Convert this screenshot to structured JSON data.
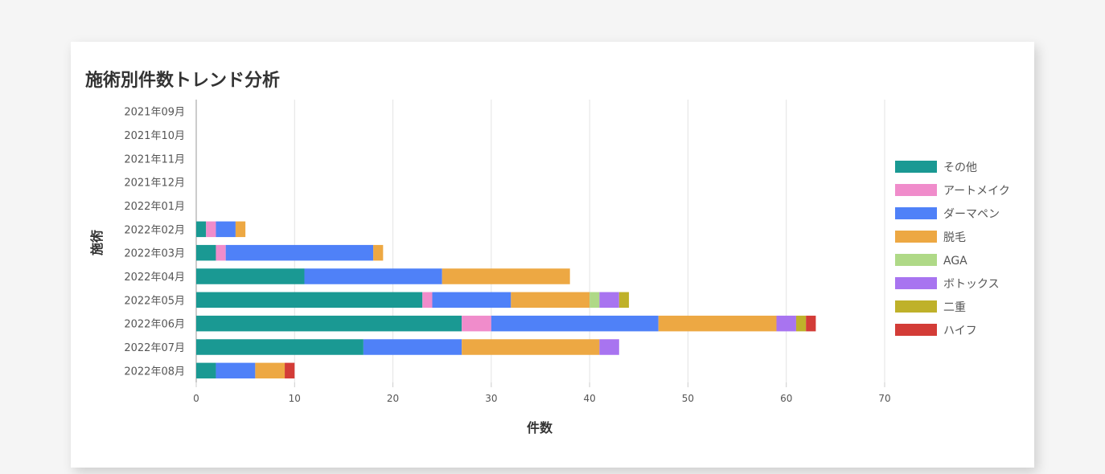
{
  "chart_data": {
    "type": "bar",
    "orientation": "horizontal",
    "stacked": true,
    "title": "施術別件数トレンド分析",
    "xlabel": "件数",
    "ylabel": "施術",
    "xlim": [
      0,
      70
    ],
    "xticks": [
      0,
      10,
      20,
      30,
      40,
      50,
      60,
      70
    ],
    "grid": true,
    "legend_position": "right",
    "categories": [
      "2021年09月",
      "2021年10月",
      "2021年11月",
      "2021年12月",
      "2022年01月",
      "2022年02月",
      "2022年03月",
      "2022年04月",
      "2022年05月",
      "2022年06月",
      "2022年07月",
      "2022年08月"
    ],
    "series": [
      {
        "name": "その他",
        "color": "#1a9993",
        "values": [
          0,
          0,
          0,
          0,
          0,
          1,
          2,
          11,
          23,
          27,
          17,
          2
        ]
      },
      {
        "name": "アートメイク",
        "color": "#f08ccb",
        "values": [
          0,
          0,
          0,
          0,
          0,
          1,
          1,
          0,
          1,
          3,
          0,
          0
        ]
      },
      {
        "name": "ダーマペン",
        "color": "#4f81f8",
        "values": [
          0,
          0,
          0,
          0,
          0,
          2,
          15,
          14,
          8,
          17,
          10,
          4
        ]
      },
      {
        "name": "脱毛",
        "color": "#eda843",
        "values": [
          0,
          0,
          0,
          0,
          0,
          1,
          1,
          13,
          8,
          12,
          14,
          3
        ]
      },
      {
        "name": "AGA",
        "color": "#afd987",
        "values": [
          0,
          0,
          0,
          0,
          0,
          0,
          0,
          0,
          1,
          0,
          0,
          0
        ]
      },
      {
        "name": "ボトックス",
        "color": "#a874f0",
        "values": [
          0,
          0,
          0,
          0,
          0,
          0,
          0,
          0,
          2,
          2,
          2,
          0
        ]
      },
      {
        "name": "二重",
        "color": "#bfb12a",
        "values": [
          0,
          0,
          0,
          0,
          0,
          0,
          0,
          0,
          1,
          1,
          0,
          0
        ]
      },
      {
        "name": "ハイフ",
        "color": "#d33c37",
        "values": [
          0,
          0,
          0,
          0,
          0,
          0,
          0,
          0,
          0,
          1,
          0,
          1
        ]
      }
    ]
  }
}
